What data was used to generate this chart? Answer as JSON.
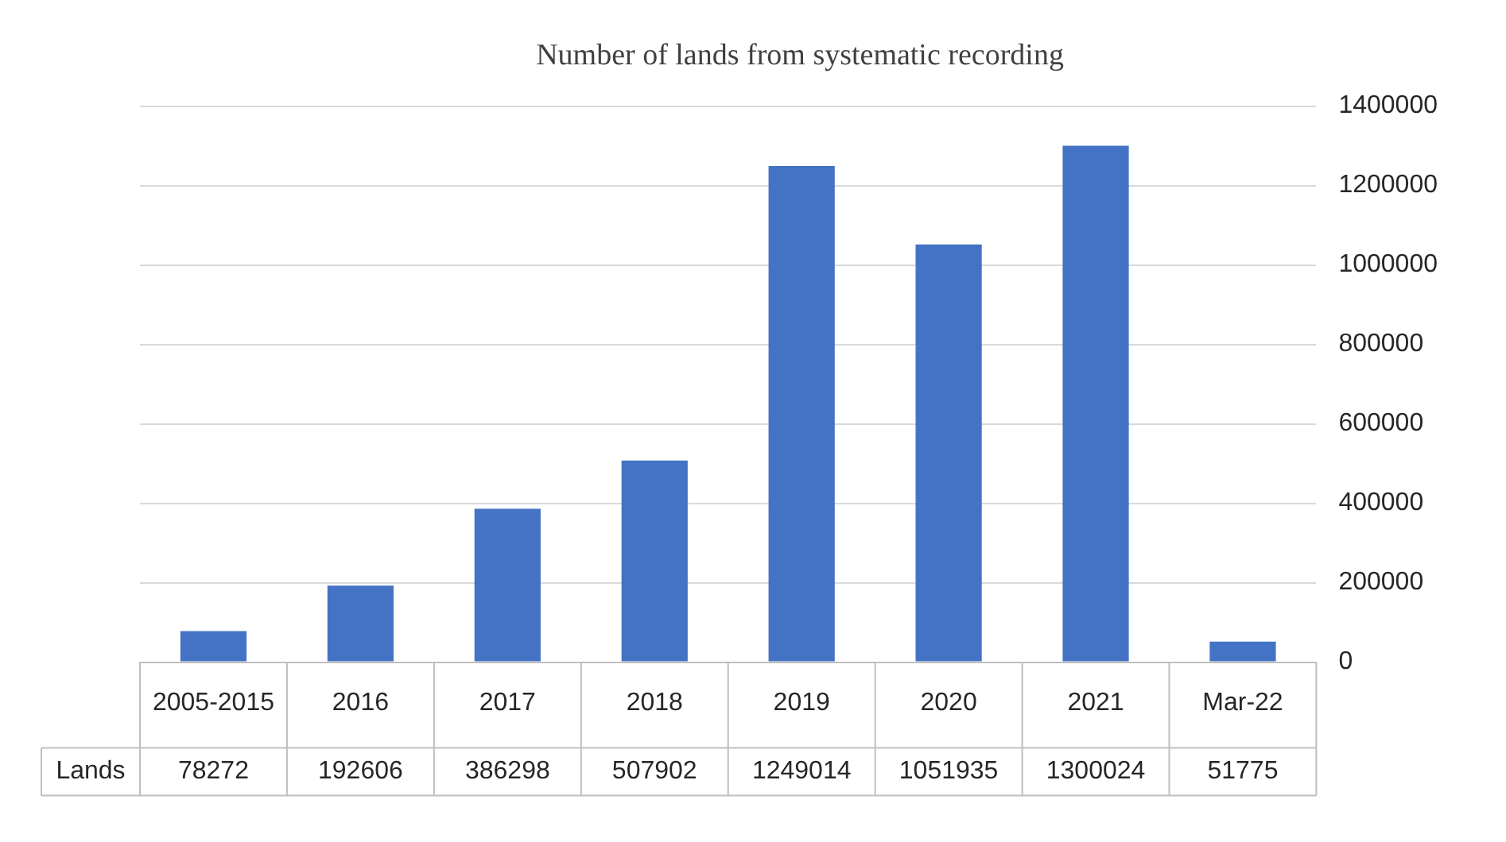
{
  "chart_data": {
    "type": "bar",
    "title": "Number of lands from systematic recording",
    "categories": [
      "2005-2015",
      "2016",
      "2017",
      "2018",
      "2019",
      "2020",
      "2021",
      "Mar-22"
    ],
    "series": [
      {
        "name": "Lands",
        "color": "#4472c4",
        "values": [
          78272,
          192606,
          386298,
          507902,
          1249014,
          1051935,
          1300024,
          51775
        ]
      }
    ],
    "ylim": [
      0,
      1400000
    ],
    "yticks": [
      0,
      200000,
      400000,
      600000,
      800000,
      1000000,
      1200000,
      1400000
    ],
    "grid": "y",
    "legend": false,
    "data_labels": true
  }
}
